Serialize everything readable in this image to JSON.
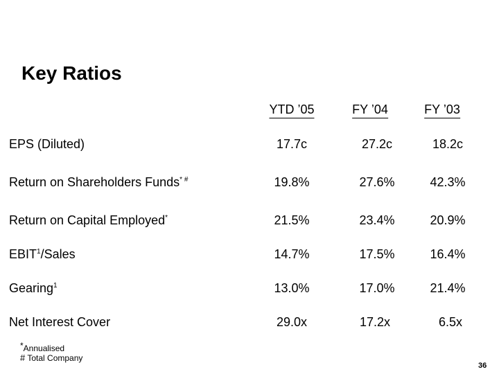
{
  "title": "Key Ratios",
  "columns": [
    "YTD ’05",
    "FY ’04",
    "FY ’03"
  ],
  "rows": [
    {
      "label": "EPS (Diluted)",
      "sup": "",
      "values": [
        "17.7c",
        "27.2c",
        "18.2c"
      ]
    },
    {
      "label": "Return on Shareholders Funds",
      "sup": "* #",
      "values": [
        "19.8%",
        "27.6%",
        "42.3%"
      ]
    },
    {
      "label": "Return on Capital Employed",
      "sup": "*",
      "values": [
        "21.5%",
        "23.4%",
        "20.9%"
      ]
    },
    {
      "label": "EBIT",
      "sup": "1",
      "suffix": "/Sales",
      "values": [
        "14.7%",
        "17.5%",
        "16.4%"
      ]
    },
    {
      "label": "Gearing",
      "sup": "1",
      "values": [
        "13.0%",
        "17.0%",
        "21.4%"
      ]
    },
    {
      "label": "Net Interest Cover",
      "sup": "",
      "values": [
        "29.0x",
        "17.2x",
        "6.5x"
      ]
    }
  ],
  "footnotes": [
    {
      "symbol": "*",
      "text": "Annualised"
    },
    {
      "symbol": "#",
      "text": " Total Company"
    }
  ],
  "page_number": "36"
}
